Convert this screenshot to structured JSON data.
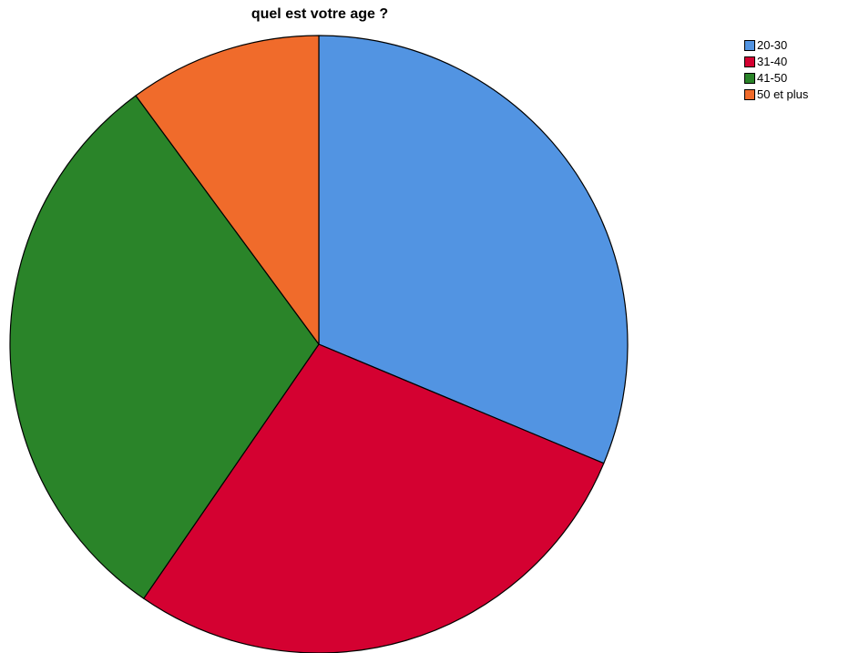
{
  "chart_data": {
    "type": "pie",
    "title": "quel est votre age ?",
    "categories": [
      "20-30",
      "31-40",
      "41-50",
      "50 et plus"
    ],
    "values": [
      31.3,
      28.3,
      30.3,
      10.1
    ],
    "unit": "%",
    "colors": [
      "#5294e2",
      "#d40131",
      "#2a8429",
      "#f06b2b"
    ],
    "start": "12 o'clock",
    "direction": "clockwise",
    "legend": "top-right"
  }
}
